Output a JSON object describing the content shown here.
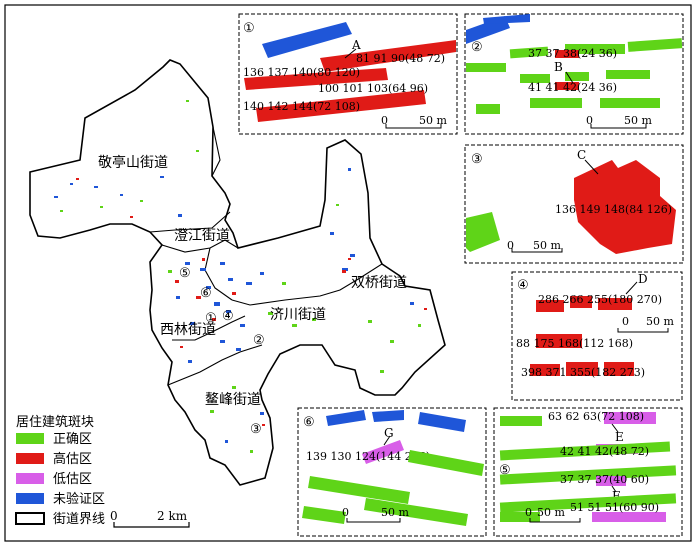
{
  "districts": {
    "jingtingshan": "敬亭山街道",
    "chengjiang": "澄江街道",
    "shuangqiao": "双桥街道",
    "jichuan": "济川街道",
    "xilin": "西林街道",
    "aofeng": "鳌峰街道"
  },
  "legend": {
    "title": "居住建筑斑块",
    "items": [
      {
        "label": "正确区",
        "color": "#5fd418"
      },
      {
        "label": "高估区",
        "color": "#e01b17"
      },
      {
        "label": "低估区",
        "color": "#d85ee8"
      },
      {
        "label": "未验证区",
        "color": "#1f56d8"
      },
      {
        "label": "街道界线",
        "color": "#000000"
      }
    ]
  },
  "main_scale": {
    "zero": "0",
    "label": "2 km"
  },
  "inset_scale": {
    "zero": "0",
    "label": "50 m"
  },
  "insets": [
    {
      "num": "①",
      "letter": "A",
      "labels": [
        "81 91 90(48 72)",
        "136 137 140(80 120)",
        "100 101 103(64 96)",
        "140 142 144(72 108)"
      ]
    },
    {
      "num": "②",
      "letter": "B",
      "labels": [
        "37 37 38(24 36)",
        "41 41 42(24 36)"
      ]
    },
    {
      "num": "③",
      "letter": "C",
      "labels": [
        "136 149 148(84 126)"
      ]
    },
    {
      "num": "④",
      "letter": "D",
      "labels": [
        "286 266 255(180 270)",
        "88 175 168(112 168)",
        "398 371 355(182 273)"
      ]
    },
    {
      "num": "⑥",
      "letter": "G",
      "labels": [
        "139 130 124(144 216)"
      ]
    },
    {
      "num": "⑤",
      "letter": "E",
      "letter2": "F",
      "labels": [
        "63 62 63(72 108)",
        "42 41 42(48 72)",
        "37 37 37(40 60)",
        "51 51 51(60 90)"
      ]
    }
  ],
  "map_markers": [
    "⑤",
    "⑥",
    "①",
    "④",
    "②",
    "③"
  ]
}
